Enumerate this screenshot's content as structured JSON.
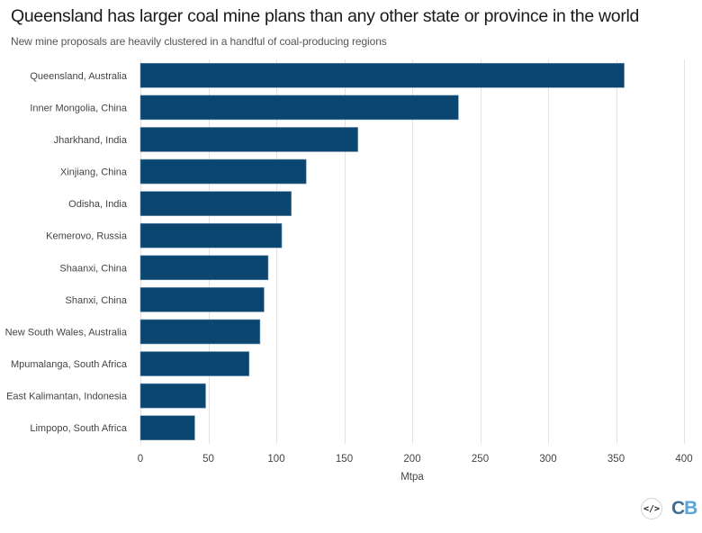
{
  "chart_data": {
    "type": "bar",
    "orientation": "horizontal",
    "title": "Queensland has larger coal mine plans than any other state or province in the world",
    "subtitle": "New mine proposals are heavily clustered in a handful of coal-producing regions",
    "categories": [
      "Queensland, Australia",
      "Inner Mongolia, China",
      "Jharkhand, India",
      "Xinjiang, China",
      "Odisha, India",
      "Kemerovo, Russia",
      "Shaanxi, China",
      "Shanxi, China",
      "New South Wales, Australia",
      "Mpumalanga, South Africa",
      "East Kalimantan, Indonesia",
      "Limpopo, South Africa"
    ],
    "values": [
      356,
      234,
      160,
      122,
      111,
      104,
      94,
      91,
      88,
      80,
      48,
      40
    ],
    "xlabel": "Mtpa",
    "ylabel": "",
    "xlim": [
      0,
      400
    ],
    "xticks": [
      0,
      50,
      100,
      150,
      200,
      250,
      300,
      350,
      400
    ],
    "grid": true,
    "legend": "none",
    "bar_color": "#0a4670"
  },
  "footer": {
    "embed_icon": "code-embed-icon",
    "embed_glyph": "</>",
    "logo_c": "C",
    "logo_b": "B"
  }
}
